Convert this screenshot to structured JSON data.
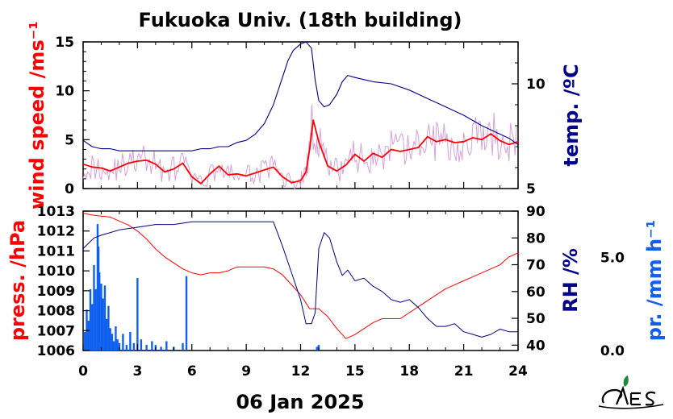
{
  "title": "Fukuoka Univ. (18th building)",
  "xlabel": "06 Jan 2025",
  "colors": {
    "wind": "#ff0000",
    "wind_raw": "#d8a0d8",
    "temp": "#00008b",
    "pressure": "#ff0000",
    "rh": "#00008b",
    "precip": "#1060f0"
  },
  "chart_data": [
    {
      "type": "line",
      "panel": "top",
      "xlim": [
        0,
        24
      ],
      "xticks": [
        "0",
        "3",
        "6",
        "9",
        "12",
        "15",
        "18",
        "21",
        "24"
      ],
      "axes": {
        "left": {
          "label": "wind speed /ms⁻¹",
          "ylim": [
            0,
            15
          ],
          "ticks": [
            "15",
            "10",
            "5",
            "0"
          ]
        },
        "right": {
          "label": "temp. /ºC",
          "ylim": [
            5,
            12
          ],
          "ticks": [
            "10",
            "5"
          ]
        }
      },
      "series": [
        {
          "axis": "left",
          "x": [
            0,
            0.5,
            1,
            1.5,
            2,
            2.5,
            3,
            3.5,
            4,
            4.5,
            5,
            5.5,
            6,
            6.5,
            7,
            7.5,
            8,
            8.5,
            9,
            9.5,
            10,
            10.5,
            11,
            11.5,
            12,
            12.3,
            12.5,
            12.7,
            13,
            13.5,
            14,
            14.5,
            15,
            15.5,
            16,
            16.5,
            17,
            17.5,
            18,
            18.5,
            19,
            19.5,
            20,
            20.5,
            21,
            21.5,
            22,
            22.5,
            23,
            23.5,
            24
          ],
          "y": [
            2.5,
            2.2,
            2.1,
            1.8,
            2.2,
            2.6,
            2.8,
            2.9,
            2.5,
            1.7,
            2.0,
            2.6,
            1.2,
            0.5,
            1.5,
            2.3,
            1.4,
            1.5,
            1.3,
            1.6,
            1.9,
            2.2,
            1.2,
            0.6,
            0.8,
            1.7,
            4.0,
            7.0,
            4.8,
            2.3,
            1.8,
            2.4,
            3.5,
            2.8,
            3.6,
            3.2,
            4.0,
            3.8,
            4.0,
            4.2,
            5.3,
            4.8,
            5.0,
            4.7,
            4.8,
            5.2,
            5.0,
            5.6,
            4.9,
            4.5,
            4.8
          ]
        },
        {
          "axis": "right",
          "x": [
            0,
            0.5,
            1,
            1.5,
            2,
            2.5,
            3,
            3.5,
            4,
            4.5,
            5,
            5.5,
            6,
            6.5,
            7,
            7.5,
            8,
            8.5,
            9,
            9.5,
            10,
            10.5,
            11,
            11.3,
            11.6,
            12,
            12.3,
            12.6,
            12.8,
            13,
            13.3,
            13.6,
            14,
            14.3,
            14.6,
            15,
            15.5,
            16,
            17,
            18,
            19,
            20,
            21,
            22,
            23,
            23.5,
            24
          ],
          "y": [
            7.3,
            7.0,
            6.9,
            6.9,
            6.8,
            6.8,
            6.8,
            6.8,
            6.8,
            6.8,
            6.8,
            6.8,
            6.8,
            6.9,
            6.9,
            7.0,
            7.0,
            7.2,
            7.3,
            7.6,
            8.1,
            9.0,
            10.3,
            11.1,
            11.6,
            11.9,
            12.0,
            11.7,
            10.2,
            9.2,
            8.9,
            9.0,
            9.5,
            10.1,
            10.4,
            10.3,
            10.2,
            10.1,
            10.0,
            9.7,
            9.3,
            8.9,
            8.5,
            8.0,
            7.6,
            7.4,
            7.1
          ]
        }
      ]
    },
    {
      "type": "line",
      "panel": "bottom",
      "xlim": [
        0,
        24
      ],
      "xticks": [
        "0",
        "3",
        "6",
        "9",
        "12",
        "15",
        "18",
        "21",
        "24"
      ],
      "axes": {
        "left": {
          "label": "press. /hPa",
          "ylim": [
            1006,
            1013
          ],
          "ticks": [
            "1013",
            "1012",
            "1011",
            "1010",
            "1009",
            "1008",
            "1007",
            "1006"
          ]
        },
        "right": {
          "label": "RH /%",
          "ylim": [
            38,
            90
          ],
          "ticks": [
            "90",
            "80",
            "70",
            "60",
            "50",
            "40"
          ]
        },
        "right2": {
          "label": "pr. /mm h⁻¹",
          "ticks": [
            "5.0",
            "0.0"
          ]
        }
      },
      "series": [
        {
          "axis": "left",
          "x": [
            0,
            0.5,
            1,
            1.5,
            2,
            2.5,
            3,
            3.5,
            4,
            4.5,
            5,
            5.5,
            6,
            6.5,
            7,
            7.5,
            8,
            8.5,
            9,
            9.5,
            10,
            10.5,
            11,
            11.5,
            12,
            12.5,
            13,
            13.5,
            14,
            14.5,
            15,
            15.5,
            16,
            16.5,
            17,
            17.5,
            18,
            18.5,
            19,
            19.5,
            20,
            20.5,
            21,
            21.5,
            22,
            22.5,
            23,
            23.5,
            24
          ],
          "y": [
            1012.9,
            1012.8,
            1012.75,
            1012.7,
            1012.5,
            1012.3,
            1012.0,
            1011.6,
            1011.1,
            1010.7,
            1010.4,
            1010.1,
            1009.9,
            1009.8,
            1009.9,
            1009.9,
            1010.0,
            1010.2,
            1010.2,
            1010.2,
            1010.2,
            1010.1,
            1009.8,
            1009.3,
            1008.8,
            1008.1,
            1008.1,
            1007.7,
            1007.1,
            1006.6,
            1006.8,
            1007.1,
            1007.4,
            1007.6,
            1007.6,
            1007.6,
            1007.9,
            1008.2,
            1008.5,
            1008.8,
            1009.1,
            1009.3,
            1009.5,
            1009.7,
            1009.9,
            1010.1,
            1010.3,
            1010.7,
            1010.9
          ]
        },
        {
          "axis": "right",
          "x": [
            0,
            0.3,
            0.6,
            1,
            1.5,
            2,
            3,
            4,
            5,
            6,
            7,
            8,
            9,
            10,
            10.5,
            11,
            11.5,
            12,
            12.3,
            12.6,
            12.8,
            13,
            13.3,
            13.6,
            14,
            14.3,
            14.6,
            15,
            15.5,
            16,
            16.5,
            17,
            17.5,
            18,
            18.5,
            19,
            19.5,
            20,
            20.5,
            21,
            21.5,
            22,
            22.5,
            23,
            23.5,
            24
          ],
          "y": [
            76,
            78,
            80,
            81,
            82,
            83,
            84,
            85,
            85,
            86,
            86,
            86,
            86,
            86,
            86,
            77,
            67,
            57,
            48,
            48,
            52,
            76,
            82,
            80,
            71,
            66,
            68,
            64,
            65,
            62,
            60,
            57,
            56,
            57,
            54,
            50,
            47,
            47,
            48,
            45,
            44,
            43,
            44,
            46,
            45,
            45
          ]
        }
      ],
      "precip_bars": {
        "axis": "right2",
        "ylim": [
          0,
          7.5
        ],
        "x": [
          0.1,
          0.2,
          0.3,
          0.4,
          0.5,
          0.6,
          0.7,
          0.8,
          0.85,
          0.9,
          1.0,
          1.1,
          1.2,
          1.3,
          1.4,
          1.5,
          1.6,
          1.7,
          1.8,
          1.9,
          2.0,
          2.2,
          2.4,
          2.6,
          2.8,
          3.0,
          3.2,
          3.5,
          3.8,
          4.0,
          4.3,
          4.6,
          5.0,
          5.5,
          5.7,
          12.9,
          13.0
        ],
        "y": [
          1.0,
          2.2,
          1.6,
          3.3,
          2.5,
          4.6,
          3.3,
          6.8,
          5.6,
          4.2,
          3.6,
          2.8,
          3.5,
          1.7,
          2.4,
          1.2,
          0.9,
          0.5,
          1.3,
          0.6,
          0.4,
          0.9,
          0.3,
          1.0,
          0.4,
          3.9,
          0.6,
          0.3,
          0.5,
          0.3,
          0.2,
          0.5,
          0.2,
          0.4,
          4.0,
          0.2,
          0.3
        ]
      }
    }
  ]
}
